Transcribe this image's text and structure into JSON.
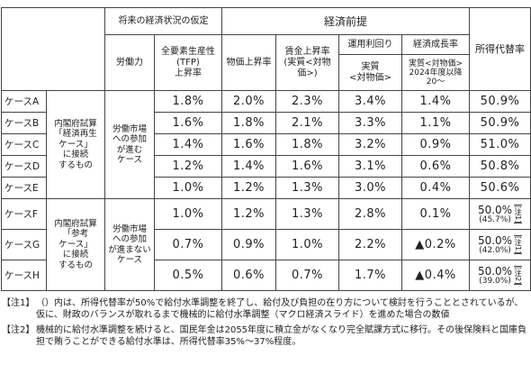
{
  "table": {
    "header": {
      "assumption": "将来の経済状況の仮定",
      "economic": "経済前提",
      "labor": "労働力",
      "tfp": [
        "全要素生産性",
        "(TFP)",
        "上昇率"
      ],
      "price": "物価上昇率",
      "wage": [
        "賃金上昇率",
        "(実質<対物",
        "価>)"
      ],
      "yield": "運用利回り",
      "yield_sub": [
        "実質",
        "<対物価>"
      ],
      "growth": "経済成長率",
      "growth_sub": [
        "実質<対物価>",
        "2024年度以降",
        "20〜"
      ],
      "replacement": "所得代替率"
    },
    "groups": [
      {
        "scenario": [
          "内閣府試算",
          "「経済再生",
          "ケース」",
          "に接続",
          "するもの"
        ],
        "labor": [
          "労働市場",
          "への参加",
          "が進む",
          "ケース"
        ]
      },
      {
        "scenario": [
          "内閣府試算",
          "「参考",
          "ケース」",
          "に接続",
          "するもの"
        ],
        "labor": [
          "労働市場",
          "への参加",
          "が進まない",
          "ケース"
        ]
      }
    ],
    "rows": [
      {
        "case": "ケースA",
        "tfp": "1.8%",
        "price": "2.0%",
        "wage": "2.3%",
        "yield": "3.4%",
        "growth": "1.4%",
        "replacement": {
          "value": "50.9%"
        }
      },
      {
        "case": "ケースB",
        "tfp": "1.6%",
        "price": "1.8%",
        "wage": "2.1%",
        "yield": "3.3%",
        "growth": "1.1%",
        "replacement": {
          "value": "50.9%"
        }
      },
      {
        "case": "ケースC",
        "tfp": "1.4%",
        "price": "1.6%",
        "wage": "1.8%",
        "yield": "3.2%",
        "growth": "0.9%",
        "replacement": {
          "value": "51.0%"
        }
      },
      {
        "case": "ケースD",
        "tfp": "1.2%",
        "price": "1.4%",
        "wage": "1.6%",
        "yield": "3.1%",
        "growth": "0.6%",
        "replacement": {
          "value": "50.8%"
        }
      },
      {
        "case": "ケースE",
        "tfp": "1.0%",
        "price": "1.2%",
        "wage": "1.3%",
        "yield": "3.0%",
        "growth": "0.4%",
        "replacement": {
          "value": "50.6%"
        }
      },
      {
        "case": "ケースF",
        "tfp": "1.0%",
        "price": "1.2%",
        "wage": "1.3%",
        "yield": "2.8%",
        "growth": "0.1%",
        "replacement": {
          "value": "50.0%",
          "sub": "(45.7%)",
          "note": "[注1]"
        }
      },
      {
        "case": "ケースG",
        "tfp": "0.7%",
        "price": "0.9%",
        "wage": "1.0%",
        "yield": "2.2%",
        "growth": "▲0.2%",
        "replacement": {
          "value": "50.0%",
          "sub": "(42.0%)",
          "note": "[注1]"
        }
      },
      {
        "case": "ケースH",
        "tfp": "0.5%",
        "price": "0.6%",
        "wage": "0.7%",
        "yield": "1.7%",
        "growth": "▲0.4%",
        "replacement": {
          "value": "50.0%",
          "sub": "(39.0%)",
          "note": "[注2]"
        }
      }
    ]
  },
  "notes": [
    {
      "label": "【注1】",
      "text": "（）内は、所得代替率が50%で給付水準調整を終了し、給付及び負担の在り方について検討を行うこととされているが、仮に、財政のバランスが取れるまで機械的に給付水準調整（マクロ経済スライド）を進めた場合の数値"
    },
    {
      "label": "【注2】",
      "text": "機械的に給付水準調整を続けると、国民年金は2055年度に積立金がなくなり完全賦課方式に移行。その後保険料と国庫負担で賄うことができる給付水準は、所得代替率35%〜37%程度。"
    }
  ]
}
